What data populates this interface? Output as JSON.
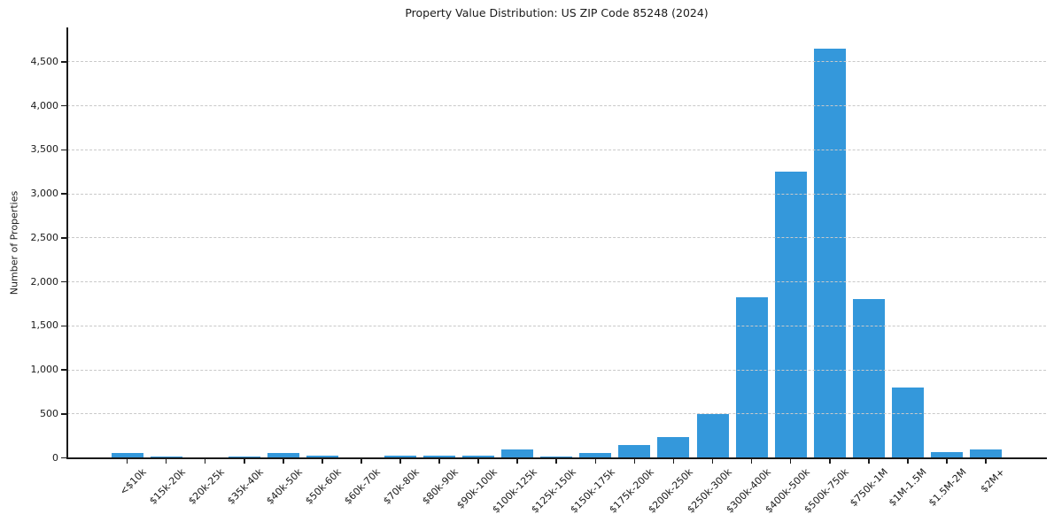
{
  "chart_data": {
    "type": "bar",
    "title": "Property Value Distribution: US ZIP Code 85248 (2024)",
    "xlabel": "",
    "ylabel": "Number of Properties",
    "categories": [
      "<$10k",
      "$15k-20k",
      "$20k-25k",
      "$35k-40k",
      "$40k-50k",
      "$50k-60k",
      "$60k-70k",
      "$70k-80k",
      "$80k-90k",
      "$90k-100k",
      "$100k-125k",
      "$125k-150k",
      "$150k-175k",
      "$175k-200k",
      "$200k-250k",
      "$250k-300k",
      "$300k-400k",
      "$400k-500k",
      "$500k-750k",
      "$750k-1M",
      "$1M-1.5M",
      "$1.5M-2M",
      "$2M+"
    ],
    "values": [
      60,
      15,
      10,
      15,
      60,
      30,
      10,
      25,
      25,
      25,
      100,
      15,
      60,
      150,
      240,
      500,
      1830,
      3250,
      4650,
      1810,
      800,
      70,
      100
    ],
    "yticks": [
      0,
      500,
      1000,
      1500,
      2000,
      2500,
      3000,
      3500,
      4000,
      4500
    ],
    "ylim": [
      0,
      4880
    ],
    "grid": "horizontal-dashed",
    "grid_on_top_of_bars": true,
    "legend_position": "none",
    "bar_color": "#3498db",
    "grid_color": "#c9c9c9",
    "axis_color": "#1a1a1a",
    "text_color": "#1a1a1a",
    "background_color": "#ffffff"
  }
}
